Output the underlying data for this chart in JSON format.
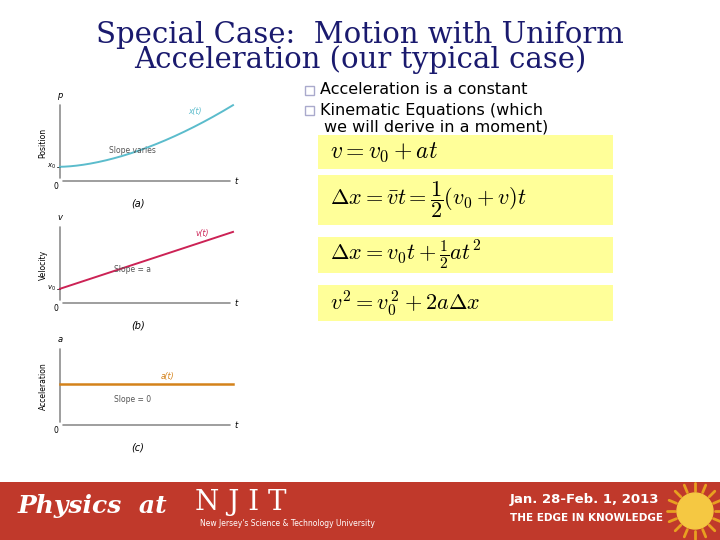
{
  "title_line1": "Special Case:  Motion with Uniform",
  "title_line2": "Acceleration (our typical case)",
  "title_color": "#1a1a6e",
  "bullet1": "Acceleration is a constant",
  "bullet2a": "Kinematic Equations (which",
  "bullet2b": "we will derive in a moment)",
  "eq_bg": "#ffff99",
  "footer_bg": "#c0392b",
  "footer_text1": "Physics  at",
  "footer_text2": "N J I T",
  "footer_text3": "New Jersey's Science & Technology University",
  "footer_text4": "Jan. 28-Feb. 1, 2013",
  "footer_text5": "THE EDGE IN KNOWLEDGE",
  "bg_color": "#ffffff",
  "curve_color": "#5bbccc",
  "line_color": "#cc2255",
  "accel_color": "#d4821a",
  "bullet_box_color": "#aaaacc"
}
